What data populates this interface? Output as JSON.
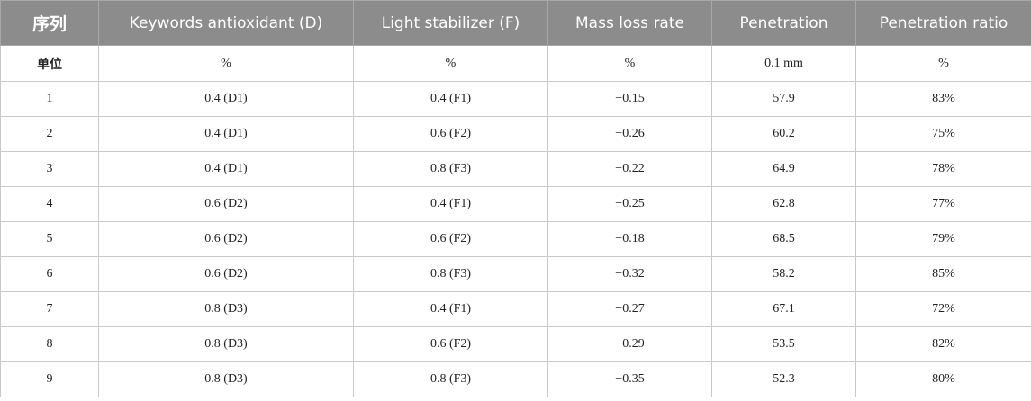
{
  "table": {
    "headers": [
      "序列",
      "Keywords antioxidant (D)",
      "Light stabilizer (F)",
      "Mass loss rate",
      "Penetration",
      "Penetration ratio"
    ],
    "units": [
      "单位",
      "%",
      "%",
      "%",
      "0.1 mm",
      "%"
    ],
    "rows": [
      [
        "1",
        "0.4 (D1)",
        "0.4 (F1)",
        "−0.15",
        "57.9",
        "83%"
      ],
      [
        "2",
        "0.4 (D1)",
        "0.6 (F2)",
        "−0.26",
        "60.2",
        "75%"
      ],
      [
        "3",
        "0.4 (D1)",
        "0.8 (F3)",
        "−0.22",
        "64.9",
        "78%"
      ],
      [
        "4",
        "0.6 (D2)",
        "0.4 (F1)",
        "−0.25",
        "62.8",
        "77%"
      ],
      [
        "5",
        "0.6 (D2)",
        "0.6 (F2)",
        "−0.18",
        "68.5",
        "79%"
      ],
      [
        "6",
        "0.6 (D2)",
        "0.8 (F3)",
        "−0.32",
        "58.2",
        "85%"
      ],
      [
        "7",
        "0.8 (D3)",
        "0.4 (F1)",
        "−0.27",
        "67.1",
        "72%"
      ],
      [
        "8",
        "0.8 (D3)",
        "0.6 (F2)",
        "−0.29",
        "53.5",
        "82%"
      ],
      [
        "9",
        "0.8 (D3)",
        "0.8 (F3)",
        "−0.35",
        "52.3",
        "80%"
      ]
    ]
  }
}
